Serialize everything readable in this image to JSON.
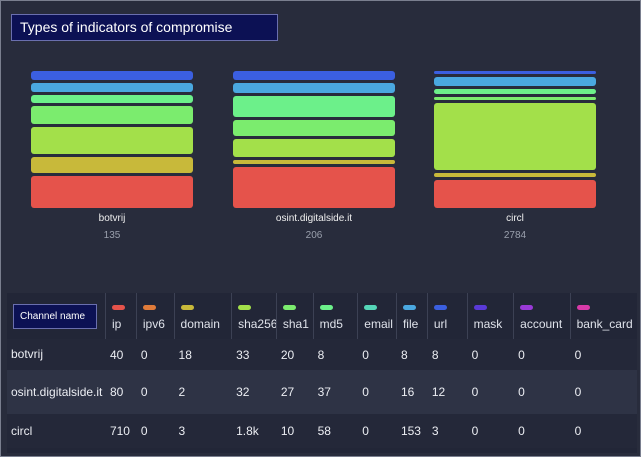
{
  "title": "Types of indicators of compromise",
  "categories": [
    {
      "key": "ip",
      "color": "#e5534b"
    },
    {
      "key": "ipv6",
      "color": "#e07b3a"
    },
    {
      "key": "domain",
      "color": "#c8b93a"
    },
    {
      "key": "sha256",
      "color": "#a3e04a"
    },
    {
      "key": "sha1",
      "color": "#7bec6e"
    },
    {
      "key": "md5",
      "color": "#6cf08a"
    },
    {
      "key": "email",
      "color": "#55d6b8"
    },
    {
      "key": "file",
      "color": "#4aa8e0"
    },
    {
      "key": "url",
      "color": "#3b5fe0"
    },
    {
      "key": "mask",
      "color": "#5a3ad8"
    },
    {
      "key": "account",
      "color": "#9a3ad8"
    },
    {
      "key": "bank_card",
      "color": "#d83aa8"
    }
  ],
  "table": {
    "channel_header": "Channel name",
    "headers": [
      "ip",
      "ipv6",
      "domain",
      "sha256",
      "sha1",
      "md5",
      "email",
      "file",
      "url",
      "mask",
      "account",
      "bank_card"
    ],
    "rows": [
      {
        "name": "botvrij",
        "values": [
          "40",
          "0",
          "18",
          "33",
          "20",
          "8",
          "0",
          "8",
          "8",
          "0",
          "0",
          "0"
        ]
      },
      {
        "name": "osint.digitalside.it",
        "values": [
          "80",
          "0",
          "2",
          "32",
          "27",
          "37",
          "0",
          "16",
          "12",
          "0",
          "0",
          "0"
        ]
      },
      {
        "name": "circl",
        "values": [
          "710",
          "0",
          "3",
          "1.8k",
          "10",
          "58",
          "0",
          "153",
          "3",
          "0",
          "0",
          "0"
        ]
      }
    ]
  },
  "stacks": [
    {
      "name": "botvrij",
      "total": "135",
      "values": [
        40,
        0,
        18,
        33,
        20,
        8,
        0,
        8,
        8,
        0,
        0,
        0
      ]
    },
    {
      "name": "osint.digitalside.it",
      "total": "206",
      "values": [
        80,
        0,
        2,
        32,
        27,
        37,
        0,
        16,
        12,
        0,
        0,
        0
      ]
    },
    {
      "name": "circl",
      "total": "2784",
      "values": [
        710,
        0,
        3,
        1800,
        10,
        58,
        0,
        153,
        3,
        0,
        0,
        0
      ]
    }
  ]
}
